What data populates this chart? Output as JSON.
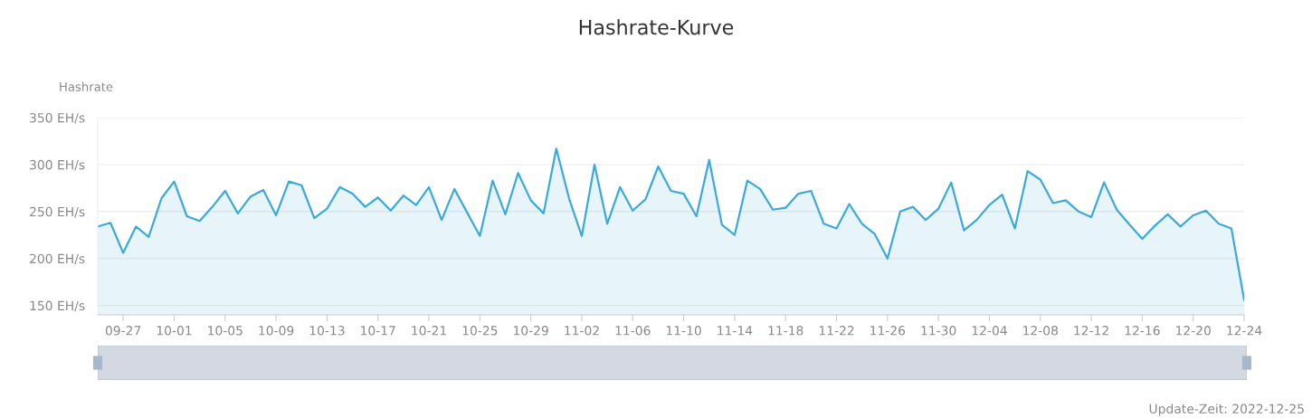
{
  "chart_data": {
    "type": "area",
    "title": "Hashrate-Kurve",
    "ylabel": "Hashrate",
    "categories": [
      null,
      null,
      "09-27",
      null,
      null,
      null,
      "10-01",
      null,
      null,
      null,
      "10-05",
      null,
      null,
      null,
      "10-09",
      null,
      null,
      null,
      "10-13",
      null,
      null,
      null,
      "10-17",
      null,
      null,
      null,
      "10-21",
      null,
      null,
      null,
      "10-25",
      null,
      null,
      null,
      "10-29",
      null,
      null,
      null,
      "11-02",
      null,
      null,
      null,
      "11-06",
      null,
      null,
      null,
      "11-10",
      null,
      null,
      null,
      "11-14",
      null,
      null,
      null,
      "11-18",
      null,
      null,
      null,
      "11-22",
      null,
      null,
      null,
      "11-26",
      null,
      null,
      null,
      "11-30",
      null,
      null,
      null,
      "12-04",
      null,
      null,
      null,
      "12-08",
      null,
      null,
      null,
      "12-12",
      null,
      null,
      null,
      "12-16",
      null,
      null,
      null,
      "12-20",
      null,
      null,
      null,
      "12-24"
    ],
    "series": [
      {
        "color": "#3ba9dc",
        "values": [
          234,
          238,
          206,
          234,
          223,
          264,
          282,
          245,
          240,
          255,
          272,
          248,
          266,
          273,
          246,
          282,
          278,
          243,
          253,
          276,
          269,
          255,
          265,
          251,
          267,
          257,
          276,
          241,
          274,
          249,
          224,
          283,
          247,
          291,
          262,
          248,
          317,
          264,
          224,
          300,
          237,
          276,
          251,
          263,
          298,
          272,
          269,
          245,
          305,
          236,
          225,
          283,
          274,
          252,
          254,
          269,
          272,
          237,
          232,
          258,
          237,
          226,
          200,
          250,
          255,
          241,
          253,
          281,
          230,
          241,
          257,
          268,
          232,
          293,
          284,
          259,
          262,
          250,
          244,
          281,
          252,
          236,
          221,
          235,
          247,
          234,
          246,
          251,
          237,
          232,
          156
        ]
      }
    ],
    "ylim": [
      140,
      350
    ],
    "yticks": [
      {
        "value": 150,
        "label": "150 EH/s"
      },
      {
        "value": 200,
        "label": "200 EH/s"
      },
      {
        "value": 250,
        "label": "250 EH/s"
      },
      {
        "value": 300,
        "label": "300 EH/s"
      },
      {
        "value": 350,
        "label": "350 EH/s"
      }
    ],
    "grid": "y",
    "annotations": [
      "Update-Zeit: 2022-12-25"
    ]
  }
}
